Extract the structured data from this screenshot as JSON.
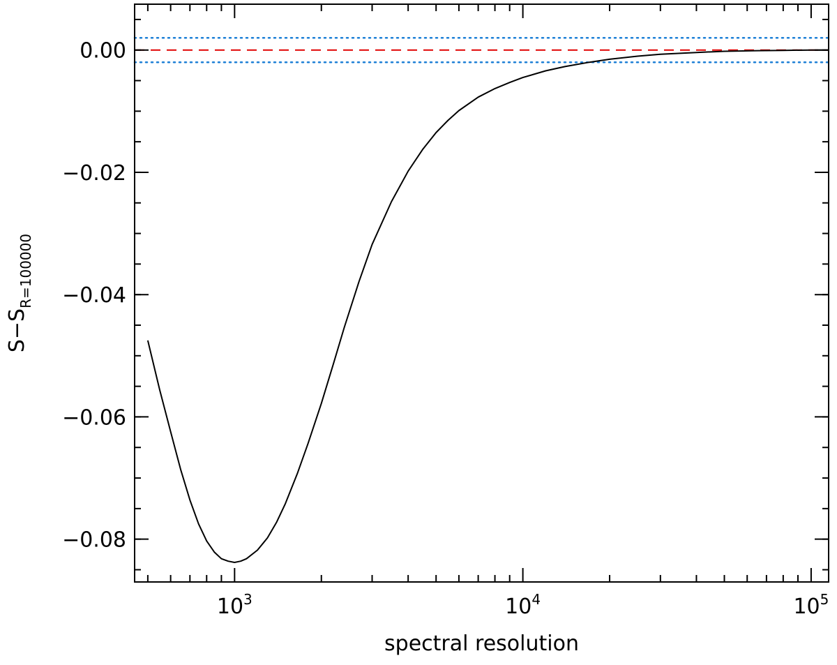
{
  "chart_data": {
    "type": "line",
    "xlabel": "spectral resolution",
    "ylabel": {
      "main": "S−S",
      "subscript": "R=100000"
    },
    "xscale": "log",
    "xlim": [
      450,
      115000
    ],
    "ylim": [
      -0.087,
      0.0075
    ],
    "grid": false,
    "x_major_ticks": [
      {
        "value": 1000,
        "base": "10",
        "exp": "3"
      },
      {
        "value": 10000,
        "base": "10",
        "exp": "4"
      },
      {
        "value": 100000,
        "base": "10",
        "exp": "5"
      }
    ],
    "y_major_ticks": [
      {
        "value": 0.0,
        "label": "0.00"
      },
      {
        "value": -0.02,
        "label": "−0.02"
      },
      {
        "value": -0.04,
        "label": "−0.04"
      },
      {
        "value": -0.06,
        "label": "−0.06"
      },
      {
        "value": -0.08,
        "label": "−0.08"
      }
    ],
    "y_minor_step": 0.005,
    "series": [
      {
        "style": "solid",
        "color": "#000000",
        "x": [
          500,
          550,
          600,
          650,
          700,
          750,
          800,
          850,
          900,
          950,
          1000,
          1050,
          1100,
          1200,
          1300,
          1400,
          1500,
          1650,
          1800,
          2000,
          2200,
          2400,
          2700,
          3000,
          3500,
          4000,
          4500,
          5000,
          5500,
          6000,
          7000,
          8000,
          9000,
          10000,
          12000,
          14000,
          17000,
          20000,
          25000,
          30000,
          40000,
          50000,
          65000,
          80000,
          100000,
          115000
        ],
        "y": [
          -0.0475,
          -0.0556,
          -0.0624,
          -0.0686,
          -0.0736,
          -0.0775,
          -0.0803,
          -0.0821,
          -0.0832,
          -0.0836,
          -0.0838,
          -0.0836,
          -0.0832,
          -0.0818,
          -0.0798,
          -0.0772,
          -0.0742,
          -0.0693,
          -0.0643,
          -0.0578,
          -0.0514,
          -0.0454,
          -0.0379,
          -0.0318,
          -0.0248,
          -0.0198,
          -0.0162,
          -0.0135,
          -0.0115,
          -0.0099,
          -0.0077,
          -0.0063,
          -0.0053,
          -0.0045,
          -0.0034,
          -0.0027,
          -0.002,
          -0.0015,
          -0.001,
          -0.0007,
          -0.0004,
          -0.0002,
          -0.0001,
          -5e-05,
          0.0,
          0.0
        ]
      }
    ],
    "reference_lines": [
      {
        "y": 0.0,
        "style": "dashed",
        "color": "#e00000"
      },
      {
        "y": 0.002,
        "style": "dotted",
        "color": "#1c7fd6"
      },
      {
        "y": -0.002,
        "style": "dotted",
        "color": "#1c7fd6"
      }
    ]
  }
}
